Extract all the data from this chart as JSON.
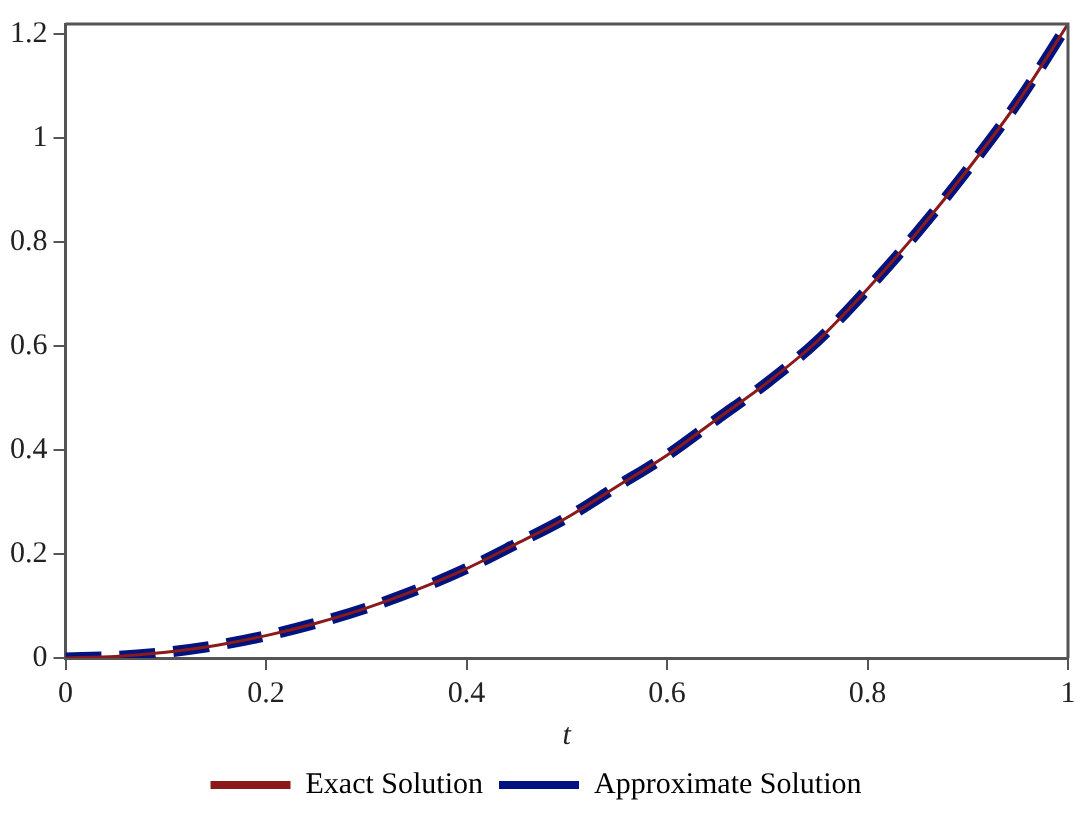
{
  "chart_data": {
    "type": "line",
    "xlabel": "t",
    "x": [
      0,
      0.05,
      0.1,
      0.15,
      0.2,
      0.25,
      0.3,
      0.35,
      0.4,
      0.45,
      0.5,
      0.55,
      0.6,
      0.65,
      0.7,
      0.75,
      0.8,
      0.85,
      0.9,
      0.95,
      1
    ],
    "series": [
      {
        "name": "Exact Solution",
        "color": "#8b1a1a",
        "values": [
          0,
          0.003,
          0.011,
          0.024,
          0.043,
          0.067,
          0.096,
          0.131,
          0.172,
          0.22,
          0.27,
          0.33,
          0.39,
          0.46,
          0.53,
          0.61,
          0.71,
          0.82,
          0.94,
          1.07,
          1.22
        ],
        "line_style": "solid"
      },
      {
        "name": "Approximate Solution",
        "color": "#00137f",
        "values": [
          0,
          0.003,
          0.011,
          0.024,
          0.043,
          0.067,
          0.096,
          0.131,
          0.172,
          0.22,
          0.27,
          0.33,
          0.39,
          0.46,
          0.53,
          0.61,
          0.71,
          0.82,
          0.94,
          1.07,
          1.22
        ],
        "line_style": "dashed"
      }
    ],
    "xlim": [
      0,
      1
    ],
    "xticks": [
      0,
      0.2,
      0.4,
      0.6,
      0.8,
      1
    ],
    "ylim": [
      0,
      1.22
    ],
    "yticks": [
      0,
      0.2,
      0.4,
      0.6,
      0.8,
      1,
      1.2
    ],
    "grid": false,
    "legend": "bottom",
    "marker": "none"
  }
}
